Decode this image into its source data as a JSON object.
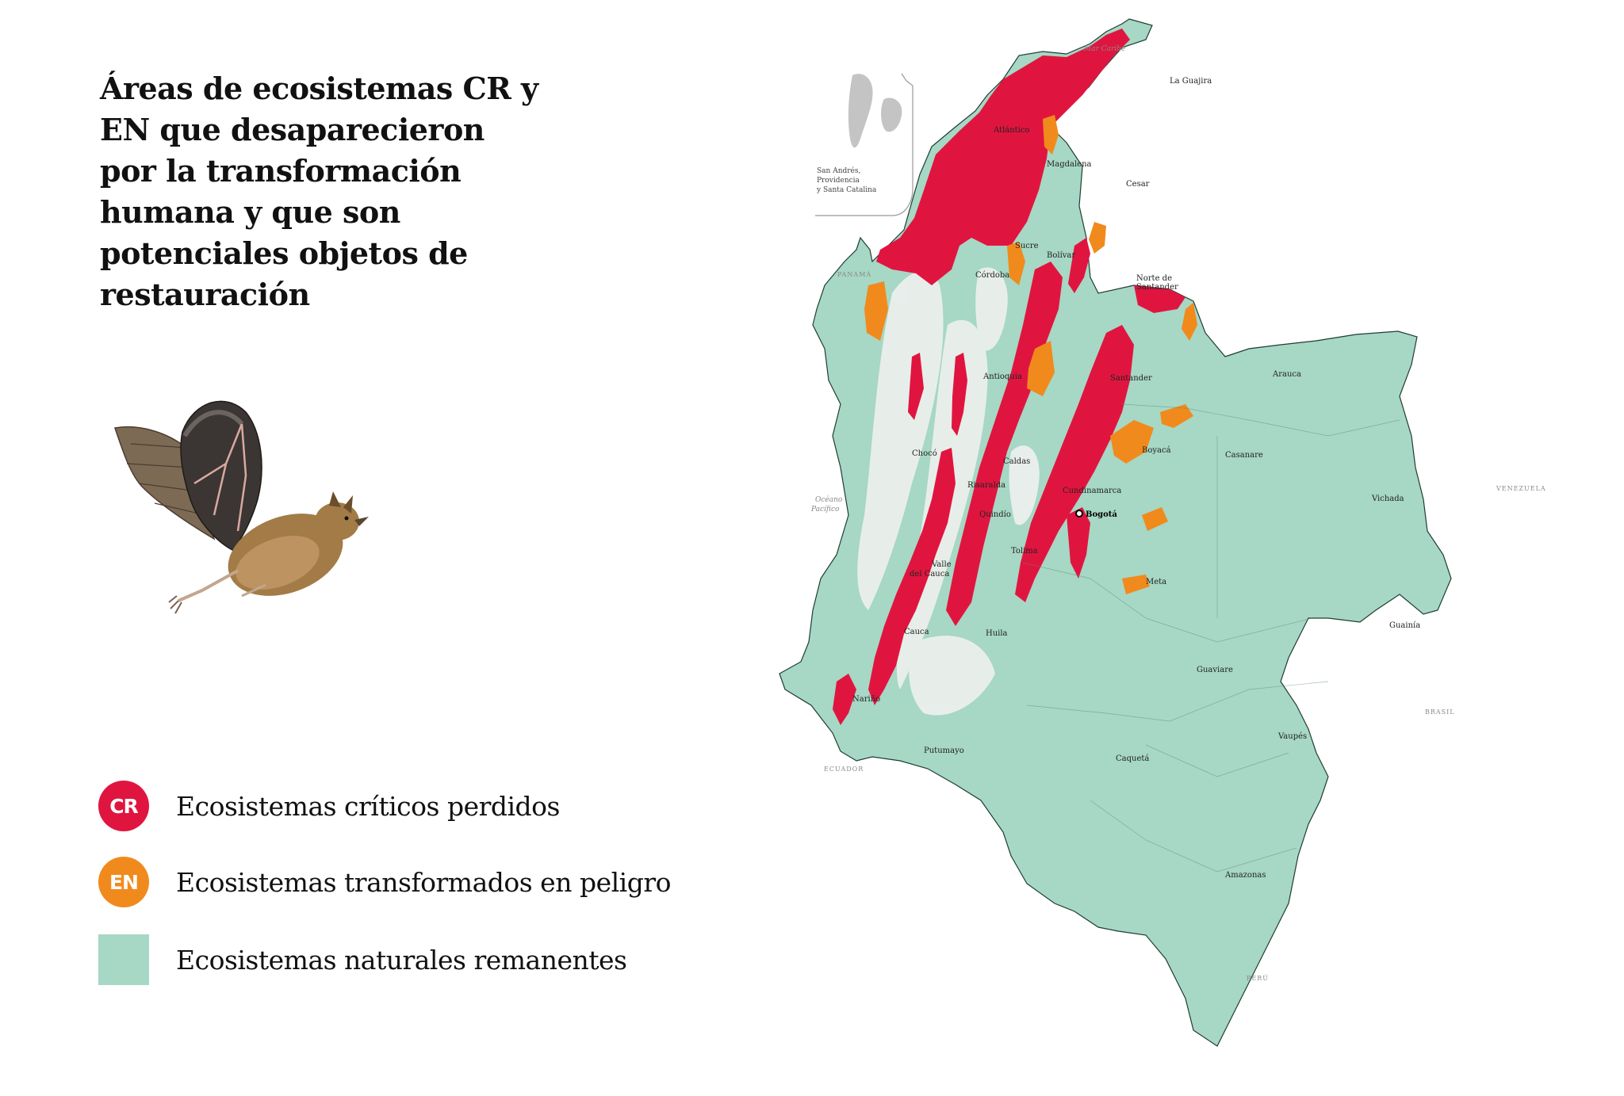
{
  "title": "Áreas de ecosistemas CR y EN que desaparecieron por la transformación humana y que son potenciales objetos de restauración",
  "legend": {
    "items": [
      {
        "badge": "CR",
        "label": "Ecosistemas críticos perdidos"
      },
      {
        "badge": "EN",
        "label": "Ecosistemas transformados en peligro"
      },
      {
        "label": "Ecosistemas naturales remanentes"
      }
    ]
  },
  "colors": {
    "critical": "#e0153f",
    "endangered": "#f18a1c",
    "remnant": "#a7d7c5",
    "transformed": "#f2f4f3"
  },
  "map": {
    "inset_label": [
      "San Andrés,",
      "Providencia",
      "y Santa Catalina"
    ],
    "seas": {
      "caribbean": "Mar Caribe",
      "pacific": [
        "Océano",
        "Pacífico"
      ]
    },
    "countries": {
      "panama": "PANAMÁ",
      "venezuela": "VENEZUELA",
      "ecuador": "ECUADOR",
      "brasil": "BRASIL",
      "peru": "PERÚ"
    },
    "capital": "Bogotá",
    "departments": {
      "la_guajira": "La Guajira",
      "atlantico": "Atlántico",
      "magdalena": "Magdalena",
      "cesar": "Cesar",
      "sucre": "Sucre",
      "bolivar": "Bolívar",
      "cordoba": "Córdoba",
      "norte_santander": [
        "Norte de",
        "Santander"
      ],
      "antioquia": "Antioquia",
      "santander": "Santander",
      "arauca": "Arauca",
      "choco": "Chocó",
      "caldas": "Caldas",
      "boyaca": "Boyacá",
      "casanare": "Casanare",
      "risaralda": "Risaralda",
      "cundinamarca": "Cundinamarca",
      "vichada": "Vichada",
      "quindio": "Quindío",
      "tolima": "Tolima",
      "valle": [
        "Valle",
        "del Cauca"
      ],
      "meta": "Meta",
      "guainia": "Guainía",
      "cauca": "Cauca",
      "huila": "Huila",
      "guaviare": "Guaviare",
      "narino": "Nariño",
      "putumayo": "Putumayo",
      "caqueta": "Caquetá",
      "vaupes": "Vaupés",
      "amazonas": "Amazonas"
    }
  }
}
